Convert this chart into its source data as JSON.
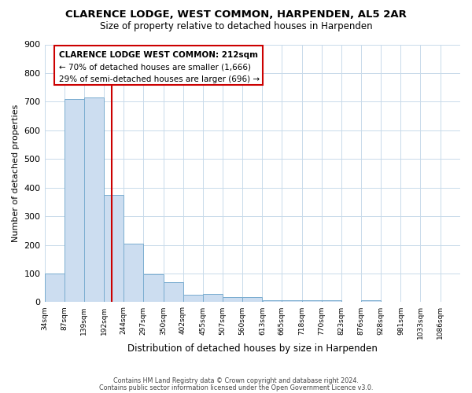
{
  "title": "CLARENCE LODGE, WEST COMMON, HARPENDEN, AL5 2AR",
  "subtitle": "Size of property relative to detached houses in Harpenden",
  "xlabel": "Distribution of detached houses by size in Harpenden",
  "ylabel": "Number of detached properties",
  "bar_left_edges": [
    34,
    87,
    139,
    192,
    244,
    297,
    350,
    402,
    455,
    507,
    560,
    613,
    665,
    718,
    770,
    823,
    876,
    928,
    981,
    1033
  ],
  "bar_heights": [
    100,
    710,
    715,
    375,
    205,
    97,
    70,
    27,
    30,
    18,
    18,
    8,
    8,
    7,
    7,
    0,
    7,
    0,
    0,
    0
  ],
  "bin_width": 53,
  "tick_labels": [
    "34sqm",
    "87sqm",
    "139sqm",
    "192sqm",
    "244sqm",
    "297sqm",
    "350sqm",
    "402sqm",
    "455sqm",
    "507sqm",
    "560sqm",
    "613sqm",
    "665sqm",
    "718sqm",
    "770sqm",
    "823sqm",
    "876sqm",
    "928sqm",
    "981sqm",
    "1033sqm",
    "1086sqm"
  ],
  "bar_color": "#ccddf0",
  "bar_edge_color": "#7aadd0",
  "property_line_x": 212,
  "property_line_color": "#cc0000",
  "ylim": [
    0,
    900
  ],
  "yticks": [
    0,
    100,
    200,
    300,
    400,
    500,
    600,
    700,
    800,
    900
  ],
  "annotation_box_text_line1": "CLARENCE LODGE WEST COMMON: 212sqm",
  "annotation_box_text_line2": "← 70% of detached houses are smaller (1,666)",
  "annotation_box_text_line3": "29% of semi-detached houses are larger (696) →",
  "annotation_box_color": "#cc0000",
  "footer_line1": "Contains HM Land Registry data © Crown copyright and database right 2024.",
  "footer_line2": "Contains public sector information licensed under the Open Government Licence v3.0.",
  "bg_color": "#ffffff",
  "grid_color": "#c8daea"
}
